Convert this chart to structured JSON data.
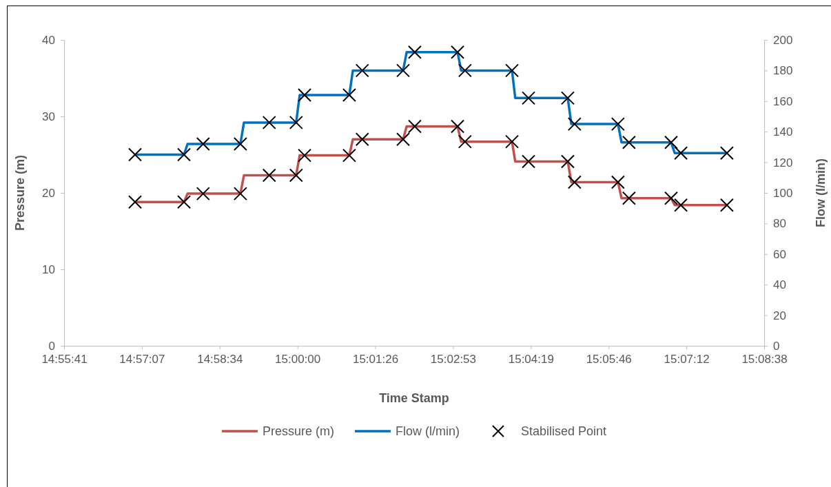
{
  "chart_data": {
    "type": "line",
    "xlabel": "Time Stamp",
    "ylabel": "Pressure (m)",
    "y2label": "Flow (l/min)",
    "xlim": [
      14.928,
      15.144
    ],
    "xticks": [
      {
        "value": 14.928,
        "label": "14:55:41"
      },
      {
        "value": 14.952,
        "label": "14:57:07"
      },
      {
        "value": 14.976,
        "label": "14:58:34"
      },
      {
        "value": 15.0,
        "label": "15:00:00"
      },
      {
        "value": 15.024,
        "label": "15:01:26"
      },
      {
        "value": 15.048,
        "label": "15:02:53"
      },
      {
        "value": 15.072,
        "label": "15:04:19"
      },
      {
        "value": 15.096,
        "label": "15:05:46"
      },
      {
        "value": 15.12,
        "label": "15:07:12"
      },
      {
        "value": 15.144,
        "label": "15:08:38"
      }
    ],
    "ylim": [
      0,
      40
    ],
    "yticks": [
      0,
      10,
      20,
      30,
      40
    ],
    "y2lim": [
      0,
      200
    ],
    "y2ticks": [
      0,
      20,
      40,
      60,
      80,
      100,
      120,
      140,
      160,
      180,
      200
    ],
    "grid": false,
    "legend": "bottom",
    "series": [
      {
        "name": "Pressure (m)",
        "type": "line",
        "color": "#c0504d",
        "marker": "none",
        "x": [
          14.9499,
          14.965,
          14.9661,
          14.9824,
          14.9835,
          14.9996,
          15.0007,
          15.016,
          15.0171,
          15.0326,
          15.0337,
          15.0494,
          15.0505,
          15.0662,
          15.0672,
          15.0834,
          15.0845,
          15.0989,
          15.1,
          15.1153,
          15.1164,
          15.1325
        ],
        "values": [
          18.8,
          18.8,
          19.9,
          19.9,
          22.3,
          22.3,
          24.9,
          24.9,
          27.0,
          27.0,
          28.7,
          28.7,
          26.7,
          26.7,
          24.1,
          24.1,
          21.4,
          21.4,
          19.3,
          19.3,
          18.4,
          18.4
        ]
      },
      {
        "name": "Flow (l/min)",
        "type": "line",
        "color": "#0070c0",
        "marker": "none",
        "axis": "y2",
        "x": [
          14.9499,
          14.965,
          14.9661,
          14.9824,
          14.9835,
          14.9996,
          15.0007,
          15.016,
          15.0171,
          15.0326,
          15.0337,
          15.0494,
          15.0505,
          15.0662,
          15.0672,
          15.0834,
          15.0845,
          15.0989,
          15.1,
          15.1153,
          15.1164,
          15.1325
        ],
        "values": [
          125,
          125,
          132,
          132,
          146,
          146,
          164,
          164,
          180,
          180,
          192,
          192,
          180,
          180,
          162,
          162,
          145,
          145,
          133,
          133,
          126,
          126
        ]
      },
      {
        "name": "Stabilised Point",
        "type": "scatter",
        "color": "#000000",
        "marker": "cross",
        "x": [
          14.9499,
          14.965,
          14.9709,
          14.9824,
          14.9913,
          14.9996,
          15.0022,
          15.016,
          15.02,
          15.0326,
          15.0362,
          15.0494,
          15.0517,
          15.0662,
          15.0713,
          15.0834,
          15.0855,
          15.0989,
          15.1023,
          15.1153,
          15.1183,
          15.1325
        ],
        "values": [
          18.8,
          18.8,
          19.9,
          19.9,
          22.3,
          22.3,
          24.9,
          24.9,
          27.0,
          27.0,
          28.7,
          28.7,
          26.7,
          26.7,
          24.1,
          24.1,
          21.4,
          21.4,
          19.3,
          19.3,
          18.4,
          18.4
        ]
      },
      {
        "type": "scatter",
        "color": "#000000",
        "marker": "cross",
        "axis": "y2",
        "x": [
          14.9499,
          14.965,
          14.9709,
          14.9824,
          14.9913,
          14.9996,
          15.0022,
          15.016,
          15.02,
          15.0326,
          15.0362,
          15.0494,
          15.0517,
          15.0662,
          15.0713,
          15.0834,
          15.0855,
          15.0989,
          15.1023,
          15.1153,
          15.1183,
          15.1325
        ],
        "values": [
          125,
          125,
          132,
          132,
          146,
          146,
          164,
          164,
          180,
          180,
          192,
          192,
          180,
          180,
          162,
          162,
          145,
          145,
          133,
          133,
          126,
          126
        ]
      }
    ]
  }
}
